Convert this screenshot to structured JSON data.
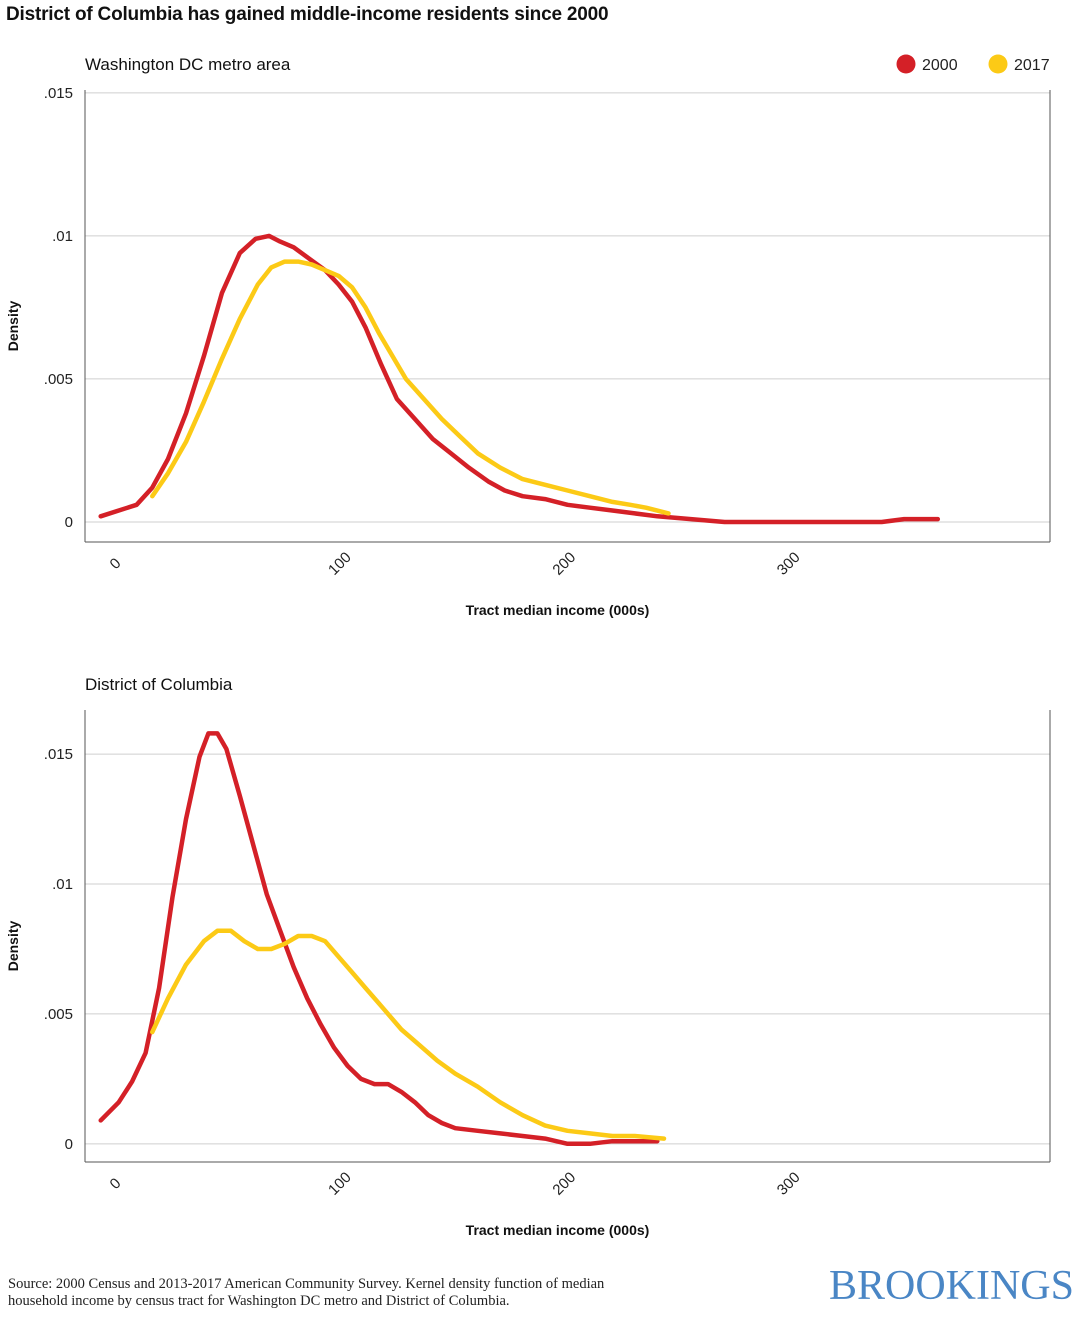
{
  "title": "District of Columbia has gained middle-income residents since 2000",
  "source": "Source: 2000 Census and 2013-2017 American Community Survey. Kernel density function of median household income by census tract for Washington DC metro and District of Columbia.",
  "logo": "BROOKINGS",
  "colors": {
    "2000": "#d42027",
    "2017": "#fcca16"
  },
  "legend": [
    {
      "label": "2000",
      "color": "#d42027"
    },
    {
      "label": "2017",
      "color": "#fcca16"
    }
  ],
  "chart_data": [
    {
      "type": "line",
      "title": "Washington DC metro area",
      "xlabel": "Tract median income (000s)",
      "ylabel": "Density",
      "xlim": [
        -15,
        415
      ],
      "ylim": [
        -0.0007,
        0.0151
      ],
      "xticks": [
        0,
        100,
        200,
        300
      ],
      "xtick_labels": [
        "0",
        "100",
        "200",
        "300"
      ],
      "yticks": [
        0,
        0.005,
        0.01,
        0.015
      ],
      "ytick_labels": [
        "0",
        ".005",
        ".01",
        ".015"
      ],
      "grid": true,
      "legend": "top-right",
      "series": [
        {
          "name": "2000",
          "color": "#d42027",
          "x": [
            -8,
            8,
            15,
            22,
            30,
            38,
            46,
            54,
            61,
            67,
            72,
            78,
            85,
            92,
            98,
            104,
            110,
            117,
            124,
            132,
            140,
            148,
            156,
            165,
            172,
            180,
            190,
            200,
            210,
            220,
            230,
            240,
            255,
            270,
            300,
            340,
            350,
            360,
            365
          ],
          "y": [
            0.0002,
            0.0006,
            0.0012,
            0.0022,
            0.0038,
            0.0058,
            0.008,
            0.0094,
            0.0099,
            0.01,
            0.0098,
            0.0096,
            0.0092,
            0.0088,
            0.0083,
            0.0077,
            0.0068,
            0.0055,
            0.0043,
            0.0036,
            0.0029,
            0.0024,
            0.0019,
            0.0014,
            0.0011,
            0.0009,
            0.0008,
            0.0006,
            0.0005,
            0.0004,
            0.0003,
            0.0002,
            0.0001,
            0.0,
            0.0,
            0.0,
            0.0001,
            0.0001,
            0.0001
          ]
        },
        {
          "name": "2017",
          "color": "#fcca16",
          "x": [
            15,
            22,
            30,
            38,
            46,
            54,
            62,
            68,
            74,
            80,
            86,
            92,
            98,
            104,
            110,
            116,
            122,
            128,
            136,
            144,
            152,
            160,
            170,
            180,
            190,
            200,
            210,
            220,
            228,
            235,
            245
          ],
          "y": [
            0.0009,
            0.0017,
            0.0028,
            0.0042,
            0.0057,
            0.0071,
            0.0083,
            0.0089,
            0.0091,
            0.0091,
            0.009,
            0.0088,
            0.0086,
            0.0082,
            0.0075,
            0.0066,
            0.0058,
            0.005,
            0.0043,
            0.0036,
            0.003,
            0.0024,
            0.0019,
            0.0015,
            0.0013,
            0.0011,
            0.0009,
            0.0007,
            0.0006,
            0.0005,
            0.0003
          ]
        }
      ]
    },
    {
      "type": "line",
      "title": "District of Columbia",
      "xlabel": "Tract median income (000s)",
      "ylabel": "Density",
      "xlim": [
        -15,
        415
      ],
      "ylim": [
        -0.0007,
        0.0167
      ],
      "xticks": [
        0,
        100,
        200,
        300
      ],
      "xtick_labels": [
        "0",
        "100",
        "200",
        "300"
      ],
      "yticks": [
        0,
        0.005,
        0.01,
        0.015
      ],
      "ytick_labels": [
        "0",
        ".005",
        ".01",
        ".015"
      ],
      "grid": true,
      "series": [
        {
          "name": "2000",
          "color": "#d42027",
          "x": [
            -8,
            0,
            6,
            12,
            18,
            24,
            30,
            36,
            40,
            44,
            48,
            54,
            60,
            66,
            72,
            78,
            84,
            90,
            96,
            102,
            108,
            114,
            120,
            126,
            132,
            138,
            144,
            150,
            160,
            170,
            180,
            190,
            200,
            210,
            220,
            230,
            240
          ],
          "y": [
            0.0009,
            0.0016,
            0.0024,
            0.0035,
            0.006,
            0.0095,
            0.0125,
            0.0149,
            0.0158,
            0.0158,
            0.0152,
            0.0134,
            0.0115,
            0.0096,
            0.0082,
            0.0068,
            0.0056,
            0.0046,
            0.0037,
            0.003,
            0.0025,
            0.0023,
            0.0023,
            0.002,
            0.0016,
            0.0011,
            0.0008,
            0.0006,
            0.0005,
            0.0004,
            0.0003,
            0.0002,
            0.0,
            0.0,
            0.0001,
            0.0001,
            0.0001
          ]
        },
        {
          "name": "2017",
          "color": "#fcca16",
          "x": [
            15,
            22,
            30,
            38,
            44,
            50,
            56,
            62,
            68,
            74,
            80,
            86,
            92,
            98,
            104,
            110,
            118,
            126,
            134,
            142,
            150,
            160,
            170,
            180,
            190,
            200,
            210,
            220,
            230,
            243
          ],
          "y": [
            0.0043,
            0.0056,
            0.0069,
            0.0078,
            0.0082,
            0.0082,
            0.0078,
            0.0075,
            0.0075,
            0.0077,
            0.008,
            0.008,
            0.0078,
            0.0072,
            0.0066,
            0.006,
            0.0052,
            0.0044,
            0.0038,
            0.0032,
            0.0027,
            0.0022,
            0.0016,
            0.0011,
            0.0007,
            0.0005,
            0.0004,
            0.0003,
            0.0003,
            0.0002
          ]
        }
      ]
    }
  ]
}
